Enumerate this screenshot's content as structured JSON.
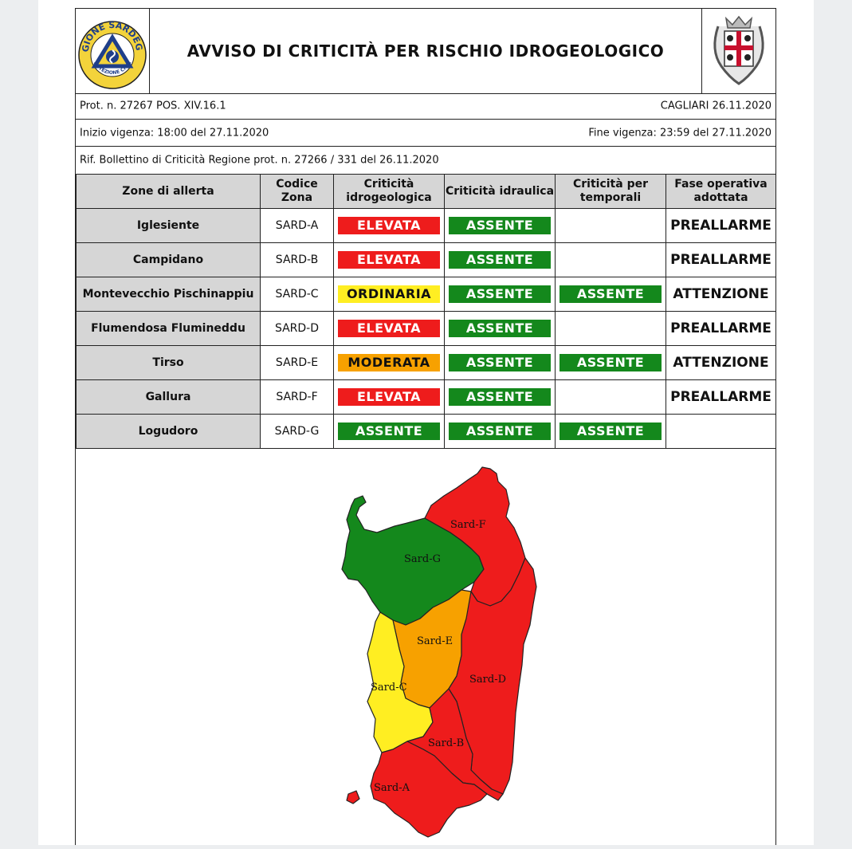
{
  "header": {
    "title": "AVVISO DI CRITICITÀ PER RISCHIO IDROGEOLOGICO",
    "logo_left_text_top": "REGIONE SARDEGNA",
    "logo_left_text_bottom": "PROTEZIONE CIVILE"
  },
  "meta": {
    "prot": "Prot. n. 27267 POS. XIV.16.1",
    "place_date": "CAGLIARI 26.11.2020",
    "inizio": "Inizio vigenza: 18:00 del 27.11.2020",
    "fine": "Fine vigenza: 23:59 del 27.11.2020",
    "rif": "Rif. Bollettino di Criticità Regione prot. n. 27266 / 331 del 26.11.2020"
  },
  "table": {
    "headers": [
      "Zone di allerta",
      "Codice Zona",
      "Criticità idrogeologica",
      "Criticità idraulica",
      "Criticità per temporali",
      "Fase operativa adottata"
    ],
    "rows": [
      {
        "zone": "Iglesiente",
        "code": "SARD-A",
        "idrogeo": "ELEVATA",
        "idraulica": "ASSENTE",
        "temporali": "",
        "fase": "PREALLARME"
      },
      {
        "zone": "Campidano",
        "code": "SARD-B",
        "idrogeo": "ELEVATA",
        "idraulica": "ASSENTE",
        "temporali": "",
        "fase": "PREALLARME"
      },
      {
        "zone": "Montevecchio Pischinappiu",
        "code": "SARD-C",
        "idrogeo": "ORDINARIA",
        "idraulica": "ASSENTE",
        "temporali": "ASSENTE",
        "fase": "ATTENZIONE"
      },
      {
        "zone": "Flumendosa Flumineddu",
        "code": "SARD-D",
        "idrogeo": "ELEVATA",
        "idraulica": "ASSENTE",
        "temporali": "",
        "fase": "PREALLARME"
      },
      {
        "zone": "Tirso",
        "code": "SARD-E",
        "idrogeo": "MODERATA",
        "idraulica": "ASSENTE",
        "temporali": "ASSENTE",
        "fase": "ATTENZIONE"
      },
      {
        "zone": "Gallura",
        "code": "SARD-F",
        "idrogeo": "ELEVATA",
        "idraulica": "ASSENTE",
        "temporali": "",
        "fase": "PREALLARME"
      },
      {
        "zone": "Logudoro",
        "code": "SARD-G",
        "idrogeo": "ASSENTE",
        "idraulica": "ASSENTE",
        "temporali": "ASSENTE",
        "fase": ""
      }
    ]
  },
  "map": {
    "labels": {
      "a": "Sard-A",
      "b": "Sard-B",
      "c": "Sard-C",
      "d": "Sard-D",
      "e": "Sard-E",
      "f": "Sard-F",
      "g": "Sard-G"
    },
    "colors": {
      "elevata": "#ee1c1c",
      "moderata": "#f7a100",
      "ordinaria": "#ffee22",
      "assente": "#14881c"
    }
  },
  "level_classes": {
    "ELEVATA": "elevata",
    "ASSENTE": "assente",
    "ORDINARIA": "ordinaria",
    "MODERATA": "moderata"
  }
}
